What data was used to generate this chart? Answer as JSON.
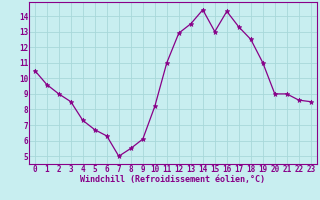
{
  "x": [
    0,
    1,
    2,
    3,
    4,
    5,
    6,
    7,
    8,
    9,
    10,
    11,
    12,
    13,
    14,
    15,
    16,
    17,
    18,
    19,
    20,
    21,
    22,
    23
  ],
  "y": [
    10.5,
    9.6,
    9.0,
    8.5,
    7.3,
    6.7,
    6.3,
    5.0,
    5.5,
    6.1,
    8.2,
    11.0,
    12.9,
    13.5,
    14.4,
    13.0,
    14.3,
    13.3,
    12.5,
    11.0,
    9.0,
    9.0,
    8.6,
    8.5
  ],
  "line_color": "#880088",
  "marker": "*",
  "bg_color": "#c8eef0",
  "grid_color": "#a8d8da",
  "xlabel": "Windchill (Refroidissement éolien,°C)",
  "xlabel_fontsize": 6.0,
  "xlim": [
    -0.5,
    23.5
  ],
  "ylim": [
    4.5,
    14.9
  ],
  "yticks": [
    5,
    6,
    7,
    8,
    9,
    10,
    11,
    12,
    13,
    14
  ],
  "xticks": [
    0,
    1,
    2,
    3,
    4,
    5,
    6,
    7,
    8,
    9,
    10,
    11,
    12,
    13,
    14,
    15,
    16,
    17,
    18,
    19,
    20,
    21,
    22,
    23
  ],
  "tick_fontsize": 5.5,
  "axis_color": "#880088",
  "marker_size": 3.5,
  "linewidth": 0.9
}
